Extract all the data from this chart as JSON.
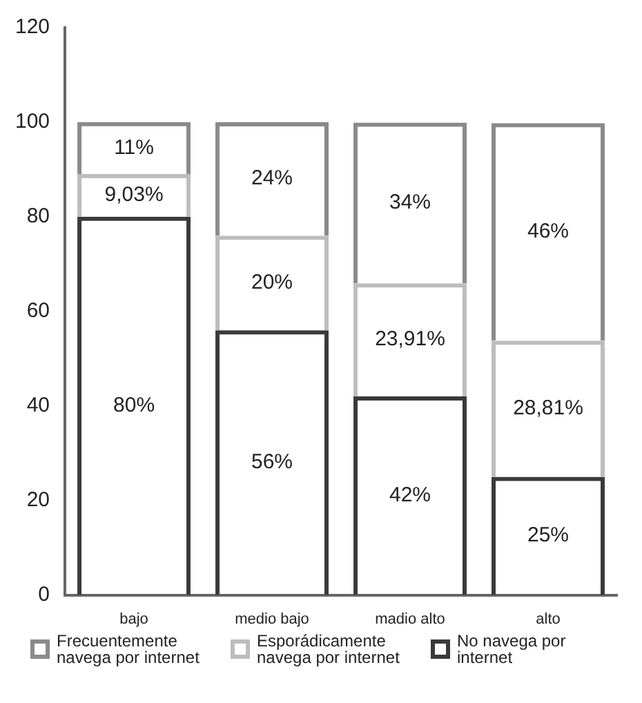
{
  "chart_data": {
    "type": "bar",
    "stacked": true,
    "categories": [
      "bajo",
      "medio bajo",
      "madio alto",
      "alto"
    ],
    "series": [
      {
        "name": "No navega por internet",
        "color": "#3a3a3a",
        "values": [
          80,
          56,
          42,
          25
        ],
        "value_labels": [
          "80%",
          "56%",
          "42%",
          "25%"
        ]
      },
      {
        "name": "Esporádicamente navega por internet",
        "color": "#bdbdbd",
        "values": [
          9.03,
          20,
          23.91,
          28.81
        ],
        "value_labels": [
          "9,03%",
          "20%",
          "23,91%",
          "28,81%"
        ]
      },
      {
        "name": "Frecuentemente navega por internet",
        "color": "#8a8a8a",
        "values": [
          11,
          24,
          34,
          46
        ],
        "value_labels": [
          "11%",
          "24%",
          "34%",
          "46%"
        ]
      }
    ],
    "ylim": [
      0,
      120
    ],
    "yticks": [
      0,
      20,
      40,
      60,
      80,
      100,
      120
    ],
    "grid": false,
    "legend": "bottom"
  }
}
